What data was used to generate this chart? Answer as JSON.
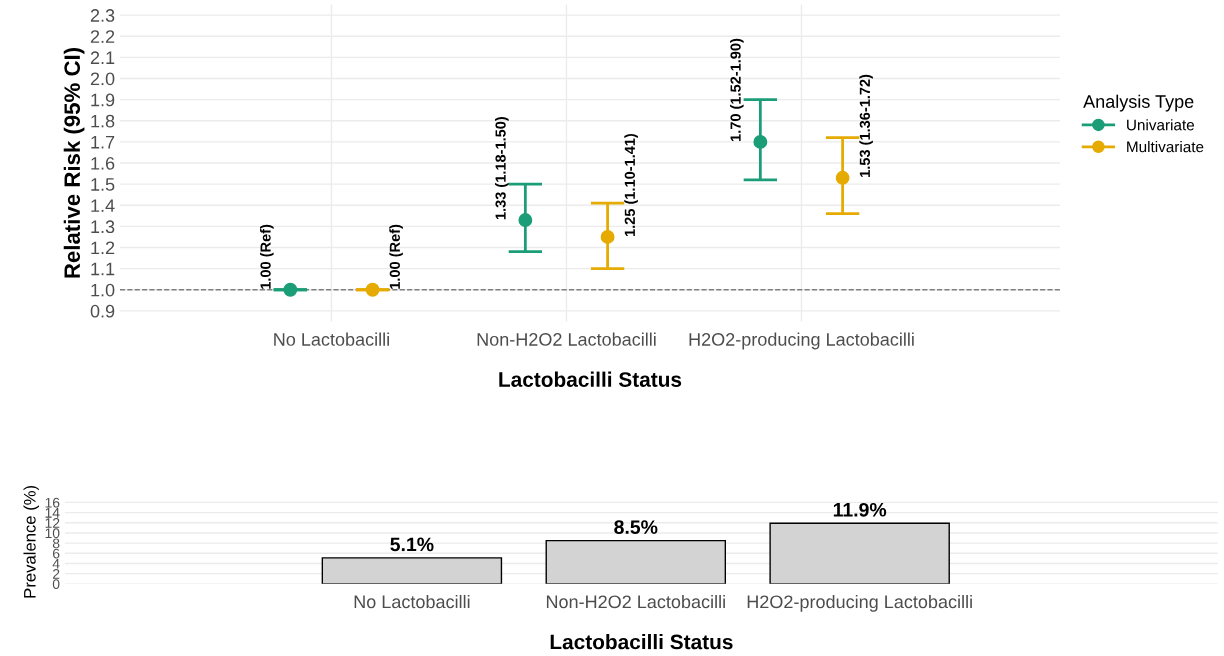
{
  "chart_data": [
    {
      "type": "scatter",
      "xlabel": "Lactobacilli Status",
      "ylabel": "Relative Risk (95% CI)",
      "legend_title": "Analysis Type",
      "categories": [
        "No Lactobacilli",
        "Non-H2O2 Lactobacilli",
        "H2O2-producing Lactobacilli"
      ],
      "series": [
        {
          "name": "Univariate",
          "color": "#1b9e77",
          "values": [
            1.0,
            1.33,
            1.7
          ],
          "errors": [
            [
              1.0,
              1.0
            ],
            [
              1.18,
              1.5
            ],
            [
              1.52,
              1.9
            ]
          ],
          "value_labels": [
            "1.00 (Ref)",
            "1.33 (1.18-1.50)",
            "1.70 (1.52-1.90)"
          ]
        },
        {
          "name": "Multivariate",
          "color": "#e6ab02",
          "values": [
            1.0,
            1.25,
            1.53
          ],
          "errors": [
            [
              1.0,
              1.0
            ],
            [
              1.1,
              1.41
            ],
            [
              1.36,
              1.72
            ]
          ],
          "value_labels": [
            "1.00 (Ref)",
            "1.25 (1.10-1.41)",
            "1.53 (1.36-1.72)"
          ]
        }
      ],
      "ylim": [
        0.85,
        2.35
      ],
      "yticks": [
        0.9,
        {
          "value": 1,
          "label": "1.0"
        },
        1.1,
        1.2,
        1.3,
        1.4,
        1.5,
        1.6,
        1.7,
        1.8,
        1.9,
        {
          "value": 2,
          "label": "2.0"
        },
        2.1,
        2.2,
        2.3
      ],
      "ref_lines": [
        {
          "axis": "y",
          "value": 1.0,
          "color": "#808080",
          "line_style": "dashed"
        }
      ],
      "grid": true,
      "legend": "right",
      "marker": "circle"
    },
    {
      "type": "bar",
      "xlabel": "Lactobacilli Status",
      "ylabel": "Prevalence (%)",
      "categories": [
        "No Lactobacilli",
        "Non-H2O2 Lactobacilli",
        "H2O2-producing Lactobacilli"
      ],
      "values": [
        5.1,
        8.5,
        11.9
      ],
      "color": "#d3d3d3",
      "value_labels": [
        "5.1%",
        "8.5%",
        "11.9%"
      ],
      "ylim": [
        0,
        16.5
      ],
      "yticks": [
        0,
        2,
        4,
        6,
        8,
        10,
        12,
        14,
        16
      ],
      "grid": "y"
    }
  ]
}
